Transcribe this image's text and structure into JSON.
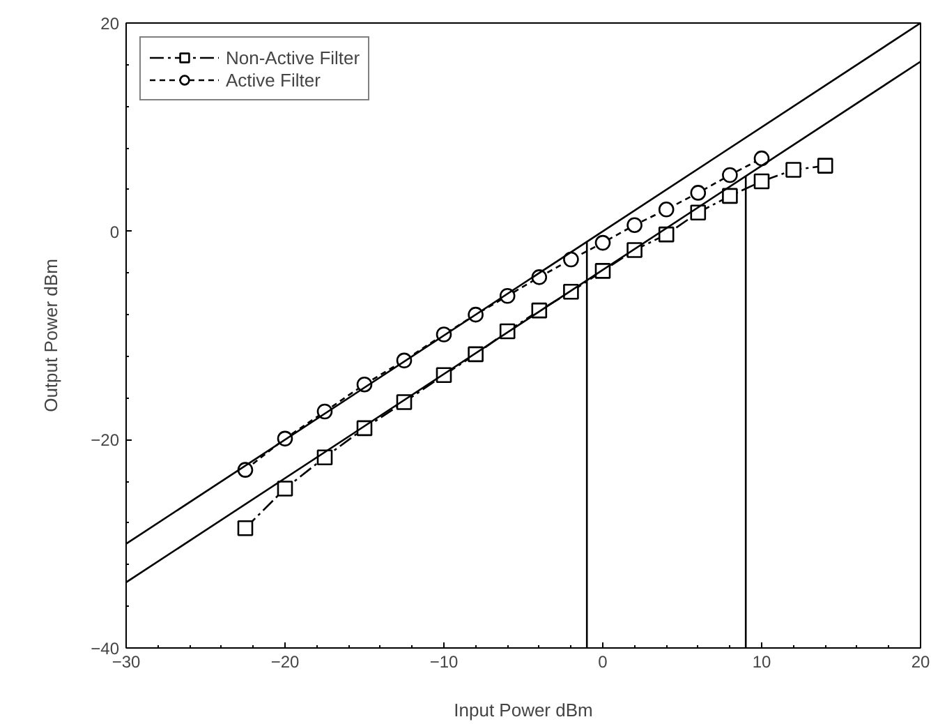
{
  "chart_data": {
    "type": "line",
    "xlabel": "Input Power dBm",
    "ylabel": "Output Power dBm",
    "xlim": [
      -30,
      20
    ],
    "ylim": [
      -40,
      20
    ],
    "xticks": [
      -30,
      -20,
      -10,
      0,
      10,
      20
    ],
    "yticks": [
      -40,
      -20,
      0,
      20
    ],
    "grid": false,
    "legend": "top left",
    "series": [
      {
        "name": "Non-Active Filter",
        "color": "#000000",
        "marker": "square",
        "line_style": "dashed",
        "x": [
          -22.5,
          -20,
          -17.5,
          -15,
          -12.5,
          -10,
          -8,
          -6,
          -4,
          -2,
          0,
          2,
          4,
          6,
          8,
          10,
          12,
          14
        ],
        "values": [
          -28.5,
          -24.7,
          -21.7,
          -18.9,
          -16.4,
          -13.8,
          -11.8,
          -9.6,
          -7.6,
          -5.8,
          -3.8,
          -1.8,
          -0.3,
          1.8,
          3.4,
          4.8,
          5.9,
          6.3
        ]
      },
      {
        "name": "Active Filter",
        "color": "#000000",
        "marker": "circle",
        "line_style": "dotted",
        "x": [
          -22.5,
          -20,
          -17.5,
          -15,
          -12.5,
          -10,
          -8,
          -6,
          -4,
          -2,
          0,
          2,
          4,
          6,
          8,
          10
        ],
        "values": [
          -22.9,
          -19.9,
          -17.3,
          -14.7,
          -12.4,
          -9.9,
          -8.0,
          -6.2,
          -4.4,
          -2.7,
          -1.1,
          0.6,
          2.1,
          3.7,
          5.4,
          7.0
        ]
      },
      {
        "color": "#000000",
        "marker": "none",
        "line_style": "solid",
        "x": [
          -30,
          20
        ],
        "values": [
          -30,
          20
        ]
      },
      {
        "color": "#000000",
        "marker": "none",
        "line_style": "solid",
        "x": [
          -30,
          20
        ],
        "values": [
          -33.7,
          16.3
        ]
      },
      {
        "color": "#000000",
        "marker": "none",
        "line_style": "solid",
        "x": [
          -1,
          -1
        ],
        "values": [
          -40,
          -1
        ]
      },
      {
        "color": "#000000",
        "marker": "none",
        "line_style": "solid",
        "x": [
          9,
          9
        ],
        "values": [
          -40,
          5.3
        ]
      }
    ]
  }
}
